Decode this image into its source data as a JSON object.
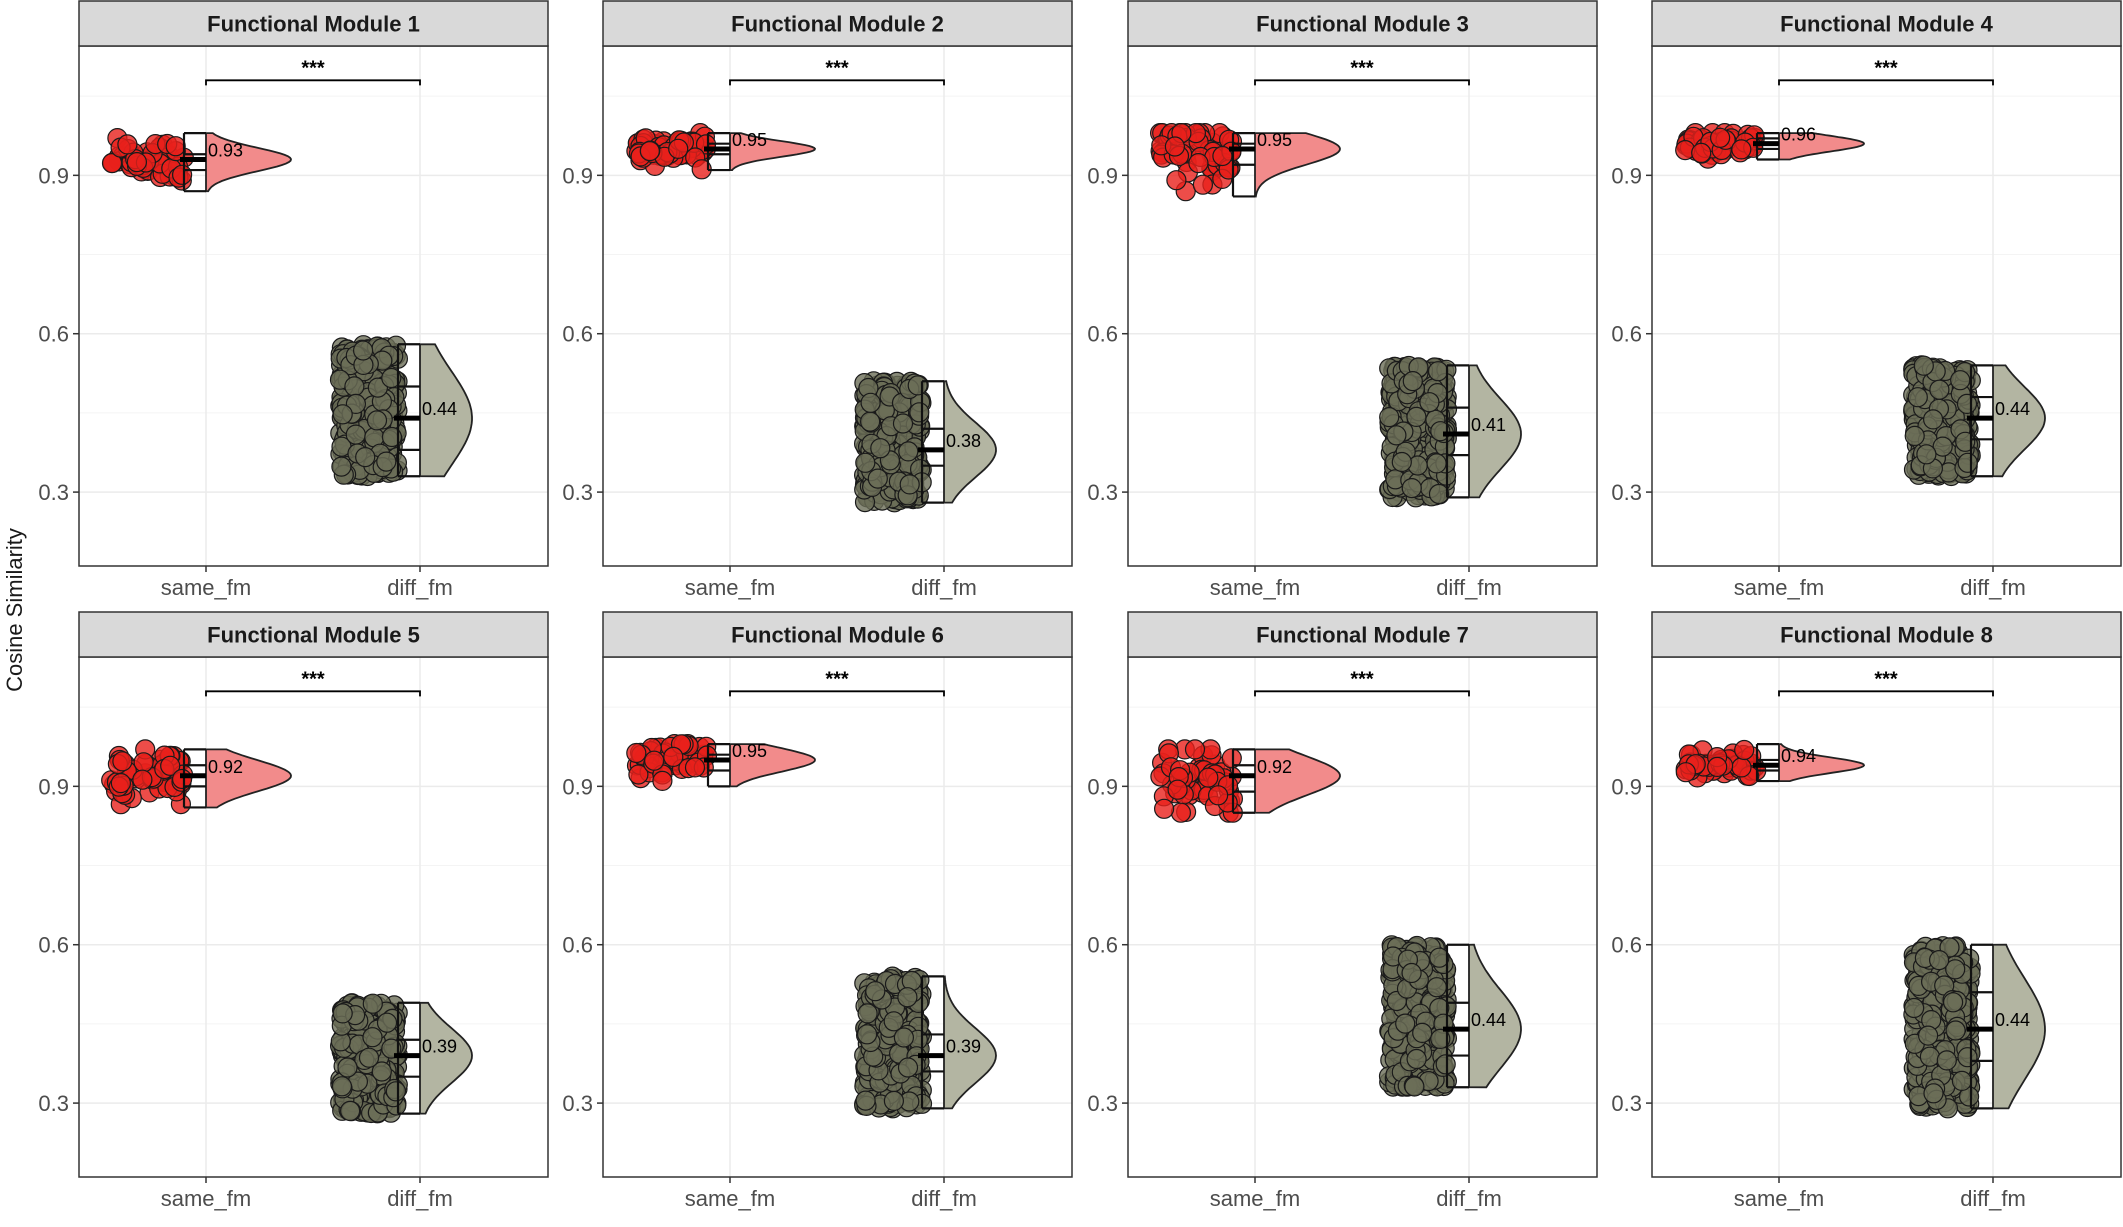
{
  "chart_data": {
    "type": "raincloud",
    "ylabel": "Cosine Similarity",
    "xlabel": "",
    "categories": [
      "same_fm",
      "diff_fm"
    ],
    "yticks": [
      0.3,
      0.6,
      0.9
    ],
    "ylim": [
      0.16,
      1.145
    ],
    "grid": true,
    "legend": "none",
    "colors": {
      "same_fm_points": "#e8201c",
      "same_fm_violin": "#f28b8b",
      "diff_fm_points": "#6b6e58",
      "diff_fm_violin": "#b3b5a2",
      "strip_bg": "#d9d9d9"
    },
    "panels": [
      {
        "title": "Functional Module 1",
        "significance": "***",
        "groups": [
          {
            "name": "same_fm",
            "min": 0.87,
            "q1": 0.91,
            "median": 0.93,
            "q3": 0.94,
            "max": 0.98,
            "label": "0.93"
          },
          {
            "name": "diff_fm",
            "min": 0.33,
            "q1": 0.38,
            "median": 0.44,
            "q3": 0.5,
            "max": 0.58,
            "label": "0.44"
          }
        ]
      },
      {
        "title": "Functional Module 2",
        "significance": "***",
        "groups": [
          {
            "name": "same_fm",
            "min": 0.91,
            "q1": 0.94,
            "median": 0.95,
            "q3": 0.96,
            "max": 0.98,
            "label": "0.95"
          },
          {
            "name": "diff_fm",
            "min": 0.28,
            "q1": 0.35,
            "median": 0.38,
            "q3": 0.42,
            "max": 0.51,
            "label": "0.38"
          }
        ]
      },
      {
        "title": "Functional Module 3",
        "significance": "***",
        "groups": [
          {
            "name": "same_fm",
            "min": 0.86,
            "q1": 0.92,
            "median": 0.95,
            "q3": 0.96,
            "max": 0.98,
            "label": "0.95"
          },
          {
            "name": "diff_fm",
            "min": 0.29,
            "q1": 0.37,
            "median": 0.41,
            "q3": 0.46,
            "max": 0.54,
            "label": "0.41"
          }
        ]
      },
      {
        "title": "Functional Module 4",
        "significance": "***",
        "groups": [
          {
            "name": "same_fm",
            "min": 0.93,
            "q1": 0.95,
            "median": 0.96,
            "q3": 0.97,
            "max": 0.98,
            "label": "0.96"
          },
          {
            "name": "diff_fm",
            "min": 0.33,
            "q1": 0.4,
            "median": 0.44,
            "q3": 0.48,
            "max": 0.54,
            "label": "0.44"
          }
        ]
      },
      {
        "title": "Functional Module 5",
        "significance": "***",
        "groups": [
          {
            "name": "same_fm",
            "min": 0.86,
            "q1": 0.9,
            "median": 0.92,
            "q3": 0.94,
            "max": 0.97,
            "label": "0.92"
          },
          {
            "name": "diff_fm",
            "min": 0.28,
            "q1": 0.35,
            "median": 0.39,
            "q3": 0.42,
            "max": 0.49,
            "label": "0.39"
          }
        ]
      },
      {
        "title": "Functional Module 6",
        "significance": "***",
        "groups": [
          {
            "name": "same_fm",
            "min": 0.9,
            "q1": 0.93,
            "median": 0.95,
            "q3": 0.96,
            "max": 0.98,
            "label": "0.95"
          },
          {
            "name": "diff_fm",
            "min": 0.29,
            "q1": 0.36,
            "median": 0.39,
            "q3": 0.43,
            "max": 0.54,
            "label": "0.39"
          }
        ]
      },
      {
        "title": "Functional Module 7",
        "significance": "***",
        "groups": [
          {
            "name": "same_fm",
            "min": 0.85,
            "q1": 0.89,
            "median": 0.92,
            "q3": 0.94,
            "max": 0.97,
            "label": "0.92"
          },
          {
            "name": "diff_fm",
            "min": 0.33,
            "q1": 0.39,
            "median": 0.44,
            "q3": 0.49,
            "max": 0.6,
            "label": "0.44"
          }
        ]
      },
      {
        "title": "Functional Module 8",
        "significance": "***",
        "groups": [
          {
            "name": "same_fm",
            "min": 0.91,
            "q1": 0.93,
            "median": 0.94,
            "q3": 0.95,
            "max": 0.98,
            "label": "0.94"
          },
          {
            "name": "diff_fm",
            "min": 0.29,
            "q1": 0.38,
            "median": 0.44,
            "q3": 0.51,
            "max": 0.6,
            "label": "0.44"
          }
        ]
      }
    ]
  }
}
